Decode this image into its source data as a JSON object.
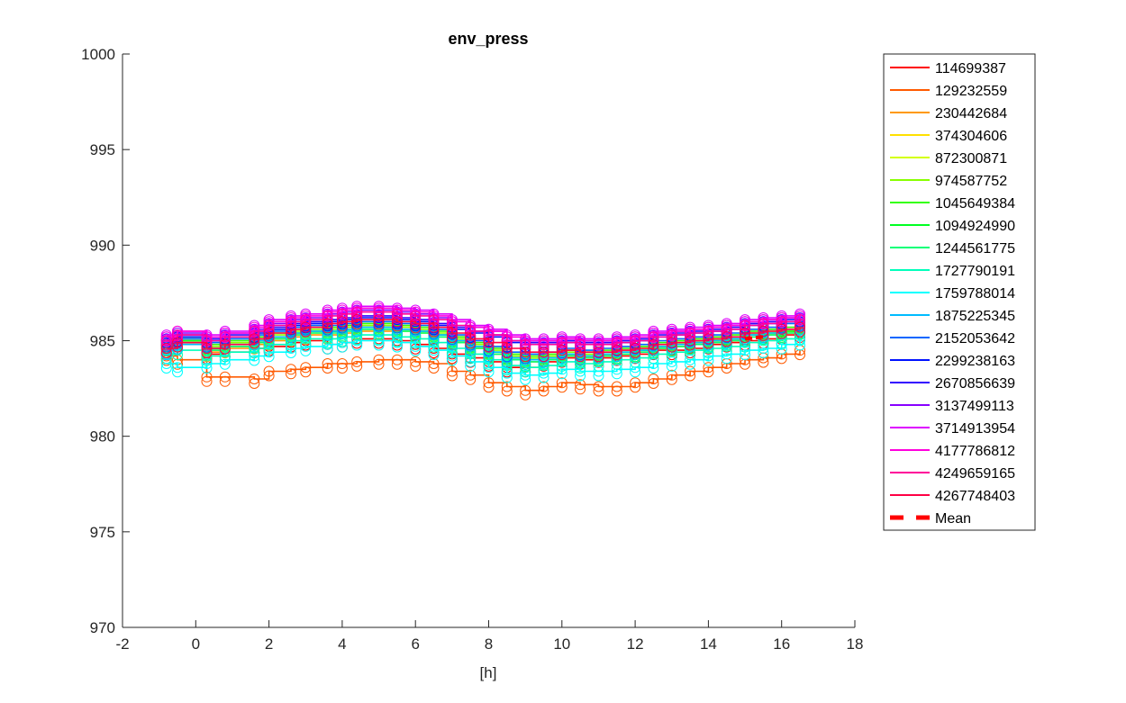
{
  "chart_data": {
    "type": "line",
    "title": "env_press",
    "xlabel": "[h]",
    "ylabel": "",
    "xlim": [
      -2,
      18
    ],
    "ylim": [
      970,
      1000
    ],
    "xticks": [
      -2,
      0,
      2,
      4,
      6,
      8,
      10,
      12,
      14,
      16,
      18
    ],
    "yticks": [
      970,
      975,
      980,
      985,
      990,
      995,
      1000
    ],
    "grid": false,
    "legend_position": "outside right",
    "markers": "circle",
    "x": [
      -0.8,
      -0.5,
      0.3,
      0.8,
      1.6,
      2.0,
      2.6,
      3.0,
      3.6,
      4.0,
      4.4,
      5.0,
      5.5,
      6.0,
      6.5,
      7.0,
      7.5,
      8.0,
      8.5,
      9.0,
      9.5,
      10.0,
      10.5,
      11.0,
      11.5,
      12.0,
      12.5,
      13.0,
      13.5,
      14.0,
      14.5,
      15.0,
      15.5,
      16.0,
      16.5
    ],
    "series": [
      {
        "name": "114699387",
        "color": "#ff0000",
        "values": [
          984.3,
          984.8,
          984.3,
          984.4,
          984.6,
          984.7,
          984.9,
          985.0,
          984.8,
          984.9,
          985.1,
          985.1,
          985.0,
          984.8,
          984.6,
          984.3,
          984.1,
          983.9,
          983.6,
          983.6,
          983.9,
          984.1,
          984.0,
          984.1,
          984.2,
          984.3,
          984.5,
          984.5,
          984.6,
          984.8,
          984.9,
          985.0,
          985.1,
          985.3,
          985.4
        ]
      },
      {
        "name": "129232559",
        "color": "#ff5a00",
        "values": [
          984.2,
          984.0,
          983.1,
          983.1,
          983.0,
          983.4,
          983.5,
          983.6,
          983.8,
          983.8,
          983.9,
          984.0,
          984.0,
          983.9,
          983.8,
          983.4,
          983.2,
          982.8,
          982.6,
          982.4,
          982.6,
          982.8,
          982.7,
          982.6,
          982.6,
          982.8,
          983.0,
          983.2,
          983.4,
          983.6,
          983.8,
          984.0,
          984.1,
          984.3,
          984.5
        ]
      },
      {
        "name": "230442684",
        "color": "#ff9900",
        "values": [
          984.6,
          984.9,
          984.4,
          984.6,
          984.8,
          985.0,
          985.2,
          985.3,
          985.3,
          985.4,
          985.5,
          985.5,
          985.5,
          985.4,
          985.2,
          984.9,
          984.6,
          984.3,
          984.0,
          983.9,
          984.0,
          984.2,
          984.1,
          984.2,
          984.3,
          984.4,
          984.6,
          984.7,
          984.8,
          984.9,
          985.0,
          985.2,
          985.3,
          985.4,
          985.6
        ]
      },
      {
        "name": "374304606",
        "color": "#ffe000",
        "values": [
          984.8,
          985.0,
          984.6,
          984.8,
          985.0,
          985.2,
          985.4,
          985.5,
          985.5,
          985.6,
          985.7,
          985.7,
          985.6,
          985.5,
          985.3,
          985.0,
          984.7,
          984.4,
          984.1,
          984.0,
          984.1,
          984.3,
          984.2,
          984.3,
          984.4,
          984.5,
          984.7,
          984.8,
          984.9,
          985.0,
          985.1,
          985.3,
          985.4,
          985.5,
          985.7
        ]
      },
      {
        "name": "872300871",
        "color": "#d4ff00",
        "values": [
          984.7,
          984.9,
          984.5,
          984.7,
          984.9,
          985.1,
          985.3,
          985.4,
          985.5,
          985.6,
          985.6,
          985.6,
          985.5,
          985.4,
          985.2,
          984.9,
          984.6,
          984.3,
          984.1,
          984.0,
          984.1,
          984.2,
          984.1,
          984.2,
          984.3,
          984.4,
          984.6,
          984.7,
          984.8,
          984.9,
          985.0,
          985.2,
          985.3,
          985.5,
          985.6
        ]
      },
      {
        "name": "974587752",
        "color": "#88ff00",
        "values": [
          984.9,
          985.1,
          984.7,
          984.9,
          985.1,
          985.3,
          985.5,
          985.6,
          985.6,
          985.7,
          985.8,
          985.8,
          985.7,
          985.6,
          985.4,
          985.1,
          984.8,
          984.5,
          984.2,
          984.1,
          984.2,
          984.4,
          984.3,
          984.4,
          984.5,
          984.6,
          984.8,
          984.9,
          985.0,
          985.1,
          985.2,
          985.4,
          985.5,
          985.6,
          985.8
        ]
      },
      {
        "name": "1045649384",
        "color": "#33ff00",
        "values": [
          985.0,
          985.2,
          984.8,
          985.0,
          985.2,
          985.4,
          985.6,
          985.7,
          985.7,
          985.8,
          985.9,
          985.9,
          985.8,
          985.7,
          985.5,
          985.2,
          984.9,
          984.6,
          984.3,
          984.2,
          984.3,
          984.5,
          984.4,
          984.5,
          984.6,
          984.7,
          984.9,
          985.0,
          985.1,
          985.2,
          985.3,
          985.5,
          985.6,
          985.7,
          985.9
        ]
      },
      {
        "name": "1094924990",
        "color": "#00ff22",
        "values": [
          984.8,
          985.0,
          984.6,
          984.8,
          985.0,
          985.2,
          985.4,
          985.5,
          985.5,
          985.6,
          985.7,
          985.7,
          985.6,
          985.5,
          985.3,
          985.0,
          984.7,
          984.4,
          984.1,
          984.0,
          984.1,
          984.3,
          984.2,
          984.3,
          984.4,
          984.5,
          984.7,
          984.8,
          984.9,
          985.0,
          985.1,
          985.3,
          985.4,
          985.5,
          985.7
        ]
      },
      {
        "name": "1244561775",
        "color": "#00ff77",
        "values": [
          984.7,
          984.9,
          984.5,
          984.7,
          984.9,
          985.1,
          985.3,
          985.4,
          985.4,
          985.5,
          985.6,
          985.6,
          985.5,
          985.4,
          985.2,
          984.9,
          984.6,
          984.3,
          984.0,
          983.9,
          984.0,
          984.2,
          984.1,
          984.2,
          984.3,
          984.4,
          984.6,
          984.7,
          984.8,
          984.9,
          985.0,
          985.2,
          985.3,
          985.4,
          985.6
        ]
      },
      {
        "name": "1727790191",
        "color": "#00ffbb",
        "values": [
          984.3,
          984.5,
          984.2,
          984.4,
          984.6,
          984.8,
          985.0,
          985.1,
          985.1,
          985.2,
          985.3,
          985.3,
          985.2,
          985.1,
          984.9,
          984.6,
          984.3,
          984.0,
          983.7,
          983.6,
          983.7,
          983.9,
          983.8,
          983.9,
          984.0,
          984.1,
          984.3,
          984.4,
          984.5,
          984.6,
          984.7,
          984.9,
          985.0,
          985.1,
          985.3
        ]
      },
      {
        "name": "1759788014",
        "color": "#00ffff",
        "values": [
          983.8,
          983.6,
          983.8,
          984.0,
          984.2,
          984.4,
          984.6,
          984.7,
          984.8,
          984.9,
          985.0,
          985.0,
          984.9,
          984.7,
          984.5,
          984.2,
          983.9,
          983.6,
          983.3,
          983.2,
          983.3,
          983.5,
          983.4,
          983.4,
          983.5,
          983.6,
          983.8,
          983.9,
          984.0,
          984.2,
          984.3,
          984.5,
          984.6,
          984.8,
          985.0
        ]
      },
      {
        "name": "1875225345",
        "color": "#00bbff",
        "values": [
          984.5,
          984.8,
          984.6,
          984.8,
          985.0,
          985.2,
          985.4,
          985.5,
          985.5,
          985.6,
          985.7,
          985.7,
          985.6,
          985.5,
          985.3,
          985.0,
          984.7,
          984.4,
          984.1,
          984.0,
          984.1,
          984.3,
          984.2,
          984.3,
          984.4,
          984.5,
          984.7,
          984.8,
          984.9,
          985.0,
          985.1,
          985.3,
          985.4,
          985.6,
          985.8
        ]
      },
      {
        "name": "2152053642",
        "color": "#0066ff",
        "values": [
          984.9,
          985.1,
          984.9,
          985.1,
          985.3,
          985.5,
          985.7,
          985.8,
          985.8,
          985.9,
          986.0,
          986.0,
          985.9,
          985.8,
          985.6,
          985.3,
          985.0,
          984.7,
          984.4,
          984.3,
          984.4,
          984.6,
          984.5,
          984.6,
          984.7,
          984.8,
          985.0,
          985.1,
          985.2,
          985.3,
          985.4,
          985.6,
          985.7,
          985.9,
          986.0
        ]
      },
      {
        "name": "2299238163",
        "color": "#0011ff",
        "values": [
          985.0,
          985.2,
          985.0,
          985.2,
          985.4,
          985.6,
          985.8,
          985.9,
          986.0,
          986.1,
          986.2,
          986.2,
          986.1,
          986.0,
          985.8,
          985.6,
          985.4,
          985.2,
          984.9,
          984.8,
          984.8,
          984.9,
          984.8,
          984.8,
          984.9,
          985.0,
          985.2,
          985.3,
          985.4,
          985.5,
          985.6,
          985.8,
          985.9,
          986.0,
          986.1
        ]
      },
      {
        "name": "2670856639",
        "color": "#3300ff",
        "values": [
          985.1,
          985.3,
          985.1,
          985.3,
          985.5,
          985.7,
          985.9,
          986.0,
          986.1,
          986.2,
          986.3,
          986.3,
          986.2,
          986.1,
          985.9,
          985.7,
          985.5,
          985.3,
          985.0,
          984.9,
          984.9,
          985.0,
          984.9,
          984.9,
          985.0,
          985.1,
          985.3,
          985.4,
          985.5,
          985.6,
          985.7,
          985.9,
          986.0,
          986.1,
          986.2
        ]
      },
      {
        "name": "3137499113",
        "color": "#8800ff",
        "values": [
          985.2,
          985.4,
          985.2,
          985.4,
          985.6,
          985.9,
          986.1,
          986.2,
          986.4,
          986.5,
          986.6,
          986.6,
          986.5,
          986.4,
          986.2,
          986.0,
          985.7,
          985.5,
          985.2,
          985.0,
          985.0,
          985.1,
          985.0,
          985.0,
          985.1,
          985.2,
          985.4,
          985.5,
          985.6,
          985.7,
          985.8,
          986.0,
          986.1,
          986.2,
          986.3
        ]
      },
      {
        "name": "3714913954",
        "color": "#dd00ff",
        "values": [
          985.3,
          985.5,
          985.3,
          985.5,
          985.8,
          986.1,
          986.3,
          986.4,
          986.6,
          986.7,
          986.8,
          986.8,
          986.7,
          986.6,
          986.4,
          986.1,
          985.8,
          985.6,
          985.3,
          985.1,
          985.1,
          985.2,
          985.1,
          985.1,
          985.2,
          985.3,
          985.5,
          985.6,
          985.7,
          985.8,
          985.9,
          986.1,
          986.2,
          986.3,
          986.4
        ]
      },
      {
        "name": "4177786812",
        "color": "#ff00dd",
        "values": [
          985.2,
          985.5,
          985.2,
          985.4,
          985.7,
          986.0,
          986.2,
          986.3,
          986.5,
          986.6,
          986.7,
          986.7,
          986.6,
          986.5,
          986.3,
          986.0,
          985.7,
          985.5,
          985.2,
          985.0,
          985.0,
          985.1,
          985.0,
          985.0,
          985.1,
          985.2,
          985.4,
          985.5,
          985.6,
          985.7,
          985.8,
          986.0,
          986.1,
          986.2,
          986.3
        ]
      },
      {
        "name": "4249659165",
        "color": "#ff0099",
        "values": [
          985.0,
          985.3,
          985.0,
          985.2,
          985.5,
          985.8,
          986.0,
          986.1,
          986.3,
          986.4,
          986.5,
          986.5,
          986.4,
          986.3,
          986.1,
          985.8,
          985.5,
          985.3,
          985.0,
          984.8,
          984.8,
          984.9,
          984.8,
          984.8,
          984.9,
          985.0,
          985.2,
          985.3,
          985.4,
          985.5,
          985.6,
          985.8,
          985.9,
          986.0,
          986.1
        ]
      },
      {
        "name": "4267748403",
        "color": "#ff0044",
        "values": [
          984.6,
          984.9,
          984.6,
          984.8,
          985.1,
          985.4,
          985.6,
          985.7,
          985.9,
          986.0,
          986.1,
          986.1,
          986.0,
          985.9,
          985.7,
          985.4,
          985.1,
          984.9,
          984.6,
          984.4,
          984.4,
          984.5,
          984.4,
          984.4,
          984.5,
          984.6,
          984.8,
          984.9,
          985.0,
          985.1,
          985.2,
          985.4,
          985.5,
          985.6,
          985.7
        ]
      }
    ],
    "mean": {
      "name": "Mean",
      "color": "#ff0000",
      "x": [
        15.0,
        15.5
      ],
      "values": [
        985.1,
        985.2
      ]
    }
  }
}
